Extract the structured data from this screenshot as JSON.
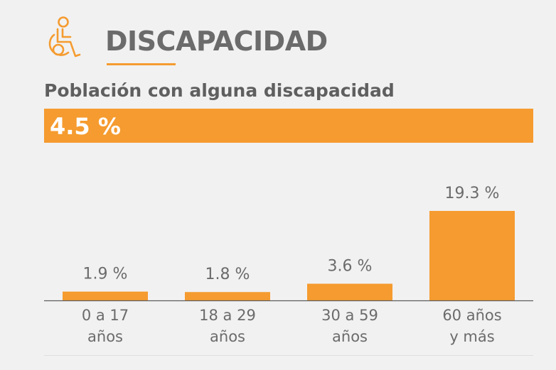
{
  "header": {
    "title": "DISCAPACIDAD",
    "icon": "wheelchair-person-icon",
    "accent_color": "#f59b2f"
  },
  "subtitle": "Población con alguna discapacidad",
  "total": {
    "label": "4.5 %",
    "value": 4.5
  },
  "chart_data": {
    "type": "bar",
    "title": "Población con alguna discapacidad",
    "categories": [
      [
        "0 a 17",
        "años"
      ],
      [
        "18 a 29",
        "años"
      ],
      [
        "30 a 59",
        "años"
      ],
      [
        "60 años",
        "y más"
      ]
    ],
    "values": [
      1.9,
      1.8,
      3.6,
      19.3
    ],
    "value_labels": [
      "1.9 %",
      "1.8 %",
      "3.6 %",
      "19.3 %"
    ],
    "unit": "%",
    "ylim": [
      0,
      19.3
    ],
    "xlabel": "",
    "ylabel": "",
    "grid": false,
    "bar_color": "#f59b2f",
    "text_color": "#6b6b6b"
  }
}
